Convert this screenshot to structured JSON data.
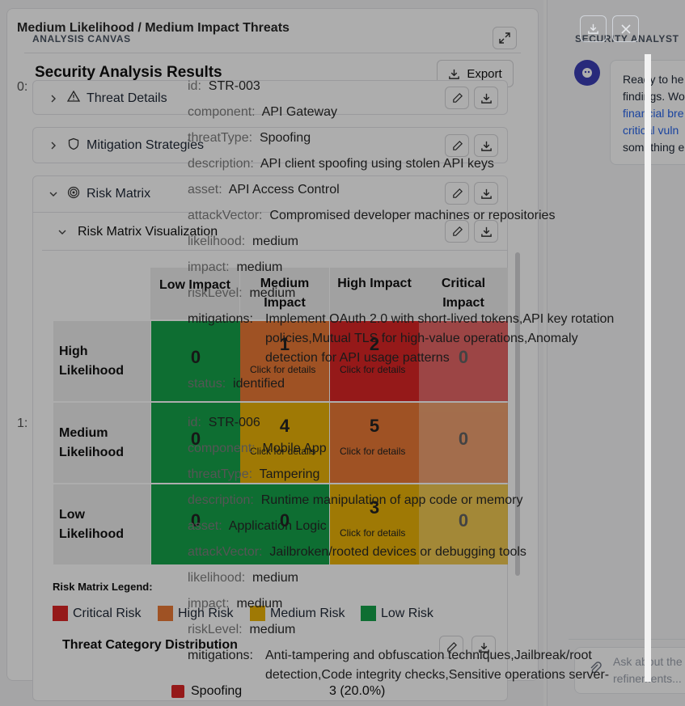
{
  "canvas": {
    "section_label": "ANALYSIS CANVAS",
    "results_title": "Security Analysis Results",
    "export_label": "Export",
    "index_labels": [
      "0:",
      "1:"
    ]
  },
  "sections": [
    {
      "label": "Threat Details",
      "icon": "warning-icon",
      "expanded": false
    },
    {
      "label": "Mitigation Strategies",
      "icon": "shield-icon",
      "expanded": false
    },
    {
      "label": "Risk Matrix",
      "icon": "target-icon",
      "expanded": true
    }
  ],
  "risk_matrix": {
    "subtitle": "Risk Matrix Visualization",
    "columns": [
      "Low Impact",
      "Medium Impact",
      "High Impact",
      "Critical Impact"
    ],
    "rows": [
      {
        "label": "High Likelihood",
        "cells": [
          {
            "count": "0",
            "level": "low"
          },
          {
            "count": "1",
            "level": "high",
            "hint": "Click for details"
          },
          {
            "count": "2",
            "level": "critical",
            "hint": "Click for details"
          },
          {
            "count": "0",
            "level": "critical"
          }
        ]
      },
      {
        "label": "Medium Likelihood",
        "cells": [
          {
            "count": "0",
            "level": "low"
          },
          {
            "count": "4",
            "level": "medium",
            "hint": "Click for details"
          },
          {
            "count": "5",
            "level": "high",
            "hint": "Click for details"
          },
          {
            "count": "0",
            "level": "high"
          }
        ]
      },
      {
        "label": "Low Likelihood",
        "cells": [
          {
            "count": "0",
            "level": "low"
          },
          {
            "count": "0",
            "level": "low"
          },
          {
            "count": "3",
            "level": "medium",
            "hint": "Click for details"
          },
          {
            "count": "0",
            "level": "medium"
          }
        ]
      }
    ],
    "legend_title": "Risk Matrix Legend:",
    "legend": [
      {
        "label": "Critical Risk",
        "color": "#dc2626"
      },
      {
        "label": "High Risk",
        "color": "#ea7a35"
      },
      {
        "label": "Medium Risk",
        "color": "#eab308"
      },
      {
        "label": "Low Risk",
        "color": "#16a34a"
      }
    ],
    "distribution_title": "Threat Category Distribution",
    "distribution": [
      {
        "label": "Spoofing",
        "value": "3 (20.0%)",
        "color": "#dc2626"
      }
    ]
  },
  "chat": {
    "section_label": "SECURITY ANALYST",
    "message_lines": [
      "Ready to he",
      "findings. Wo",
      "financial bre",
      "critical vuln",
      "something e"
    ],
    "input_placeholder": "Ask about the refinements..."
  },
  "overlay": {
    "title": "Medium Likelihood / Medium Impact Threats",
    "threats": [
      {
        "id": "STR-003",
        "component": "API Gateway",
        "threatType": "Spoofing",
        "description": "API client spoofing using stolen API keys",
        "asset": "API Access Control",
        "attackVector": "Compromised developer machines or repositories",
        "likelihood": "medium",
        "impact": "medium",
        "riskLevel": "medium",
        "mitigations_lines": [
          "Implement OAuth 2.0 with short-lived tokens,API key rotation",
          "policies,Mutual TLS for high-value operations,Anomaly",
          "detection for API usage patterns"
        ],
        "status": "identified"
      },
      {
        "id": "STR-006",
        "component": "Mobile App",
        "threatType": "Tampering",
        "description": "Runtime manipulation of app code or memory",
        "asset": "Application Logic",
        "attackVector": "Jailbroken/rooted devices or debugging tools",
        "likelihood": "medium",
        "impact": "medium",
        "riskLevel": "medium",
        "mitigations_lines": [
          "Anti-tampering and obfuscation techniques,Jailbreak/root",
          "detection,Code integrity checks,Sensitive operations server-"
        ]
      }
    ],
    "keys": {
      "id": "id:",
      "component": "component:",
      "threatType": "threatType:",
      "description": "description:",
      "asset": "asset:",
      "attackVector": "attackVector:",
      "likelihood": "likelihood:",
      "impact": "impact:",
      "riskLevel": "riskLevel:",
      "mitigations": "mitigations:",
      "status": "status:"
    }
  },
  "colors": {
    "critical": "#dc2626",
    "high": "#ea7a35",
    "medium": "#eab308",
    "low": "#16a34a"
  }
}
